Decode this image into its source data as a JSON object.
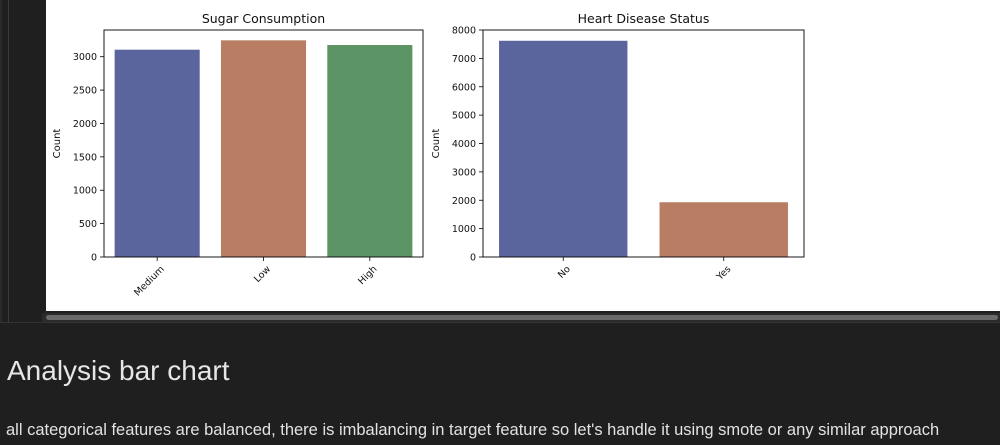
{
  "colors": {
    "page_bg": "#1f1f1f",
    "plot_bg": "#ffffff",
    "blue": "#5a659d",
    "orange": "#b87d62",
    "green": "#5d9466",
    "text_light": "#e6e6e6"
  },
  "chart_data": [
    {
      "type": "bar",
      "title": "Sugar Consumption",
      "xlabel": "",
      "ylabel": "Count",
      "categories": [
        "Medium",
        "Low",
        "High"
      ],
      "values": [
        3105,
        3245,
        3175
      ],
      "bar_colors": [
        "#5a659d",
        "#b87d62",
        "#5d9466"
      ],
      "ylim": [
        0,
        3400
      ],
      "yticks": [
        0,
        500,
        1000,
        1500,
        2000,
        2500,
        3000
      ],
      "ytick_labels": [
        "0",
        "500",
        "1000",
        "1500",
        "2000",
        "2500",
        "3000"
      ],
      "grid": false,
      "xtick_rotation": 45
    },
    {
      "type": "bar",
      "title": "Heart Disease Status",
      "xlabel": "",
      "ylabel": "Count",
      "categories": [
        "No",
        "Yes"
      ],
      "values": [
        7620,
        1930
      ],
      "bar_colors": [
        "#5a659d",
        "#b87d62"
      ],
      "ylim": [
        0,
        8000
      ],
      "yticks": [
        0,
        1000,
        2000,
        3000,
        4000,
        5000,
        6000,
        7000,
        8000
      ],
      "ytick_labels": [
        "0",
        "1000",
        "2000",
        "3000",
        "4000",
        "5000",
        "6000",
        "7000",
        "8000"
      ],
      "grid": false,
      "xtick_rotation": 45
    }
  ],
  "markdown": {
    "heading": "Analysis bar chart",
    "text": "all categorical features are balanced, there is imbalancing in target feature so let's handle it using smote or any similar approach"
  }
}
